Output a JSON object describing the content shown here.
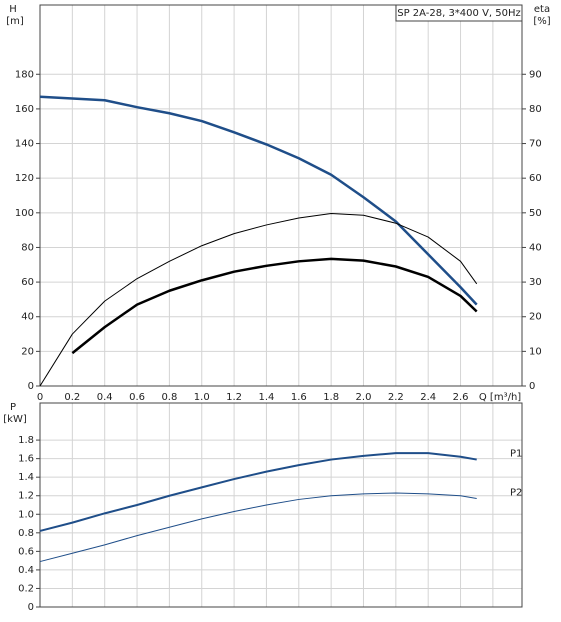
{
  "chart_data": [
    {
      "type": "line",
      "title": "SP 2A-28, 3*400 V, 50Hz",
      "ylabel": "H",
      "yunit": "[m]",
      "y2label": "eta",
      "y2unit": "[%]",
      "x": [
        0,
        0.2,
        0.4,
        0.6,
        0.8,
        1.0,
        1.2,
        1.4,
        1.6,
        1.8,
        2.0,
        2.2,
        2.4,
        2.6,
        2.7
      ],
      "xlim": [
        0,
        2.98
      ],
      "xticks": [
        0,
        0.2,
        0.4,
        0.6,
        0.8,
        {
          "value": 1,
          "label": "1.0"
        },
        1.2,
        1.4,
        1.6,
        1.8,
        {
          "value": 2,
          "label": "2.0"
        },
        2.2,
        2.4,
        2.6,
        {
          "value": 2.8,
          "label": "Q [m³/h]"
        }
      ],
      "ylim": [
        0,
        220
      ],
      "yticks": [
        0,
        20,
        40,
        60,
        80,
        100,
        120,
        140,
        160,
        180
      ],
      "y2lim": [
        0,
        110
      ],
      "y2ticks": [
        0,
        10,
        20,
        30,
        40,
        50,
        60,
        70,
        80,
        90
      ],
      "grid": true,
      "xtick_labels": true,
      "series": [
        {
          "color": "#1f4e89",
          "width": 2.5,
          "values": [
            167,
            166,
            165,
            161,
            157.5,
            153,
            146.5,
            139.5,
            131.5,
            122,
            109,
            95,
            76,
            57,
            47
          ]
        },
        {
          "color": "#000000",
          "width": 1,
          "axis": "y2",
          "values": [
            0,
            15,
            24.5,
            31,
            36,
            40.5,
            44,
            46.5,
            48.5,
            49.8,
            49.3,
            47,
            43,
            36,
            29.5
          ]
        },
        {
          "color": "#000000",
          "width": 2.5,
          "axis": "y2",
          "values": [
            null,
            9.5,
            17,
            23.5,
            27.5,
            30.5,
            33,
            34.7,
            36,
            36.7,
            36.2,
            34.5,
            31.5,
            26,
            21.5
          ]
        }
      ]
    },
    {
      "type": "line",
      "ylabel": "P",
      "yunit": "[kW]",
      "x": [
        0,
        0.2,
        0.4,
        0.6,
        0.8,
        1.0,
        1.2,
        1.4,
        1.6,
        1.8,
        2.0,
        2.2,
        2.4,
        2.6,
        2.7
      ],
      "xlim": [
        0,
        2.98
      ],
      "xticks": [
        0,
        0.2,
        0.4,
        0.6,
        0.8,
        1.0,
        1.2,
        1.4,
        1.6,
        1.8,
        2.0,
        2.2,
        2.4,
        2.6,
        2.8
      ],
      "ylim": [
        0,
        2.2
      ],
      "yticks": [
        0,
        0.2,
        0.4,
        0.6,
        0.8,
        {
          "value": 1,
          "label": "1.0"
        },
        1.2,
        1.4,
        1.6,
        1.8
      ],
      "grid": true,
      "xtick_labels": false,
      "series": [
        {
          "name": "P1",
          "color": "#1f4e89",
          "width": 2,
          "values": [
            0.82,
            0.91,
            1.01,
            1.1,
            1.2,
            1.29,
            1.38,
            1.46,
            1.53,
            1.59,
            1.63,
            1.66,
            1.66,
            1.62,
            1.59
          ]
        },
        {
          "name": "P2",
          "color": "#1f4e89",
          "width": 1,
          "values": [
            0.49,
            0.58,
            0.67,
            0.77,
            0.86,
            0.95,
            1.03,
            1.1,
            1.16,
            1.2,
            1.22,
            1.23,
            1.22,
            1.2,
            1.17
          ]
        }
      ]
    }
  ]
}
